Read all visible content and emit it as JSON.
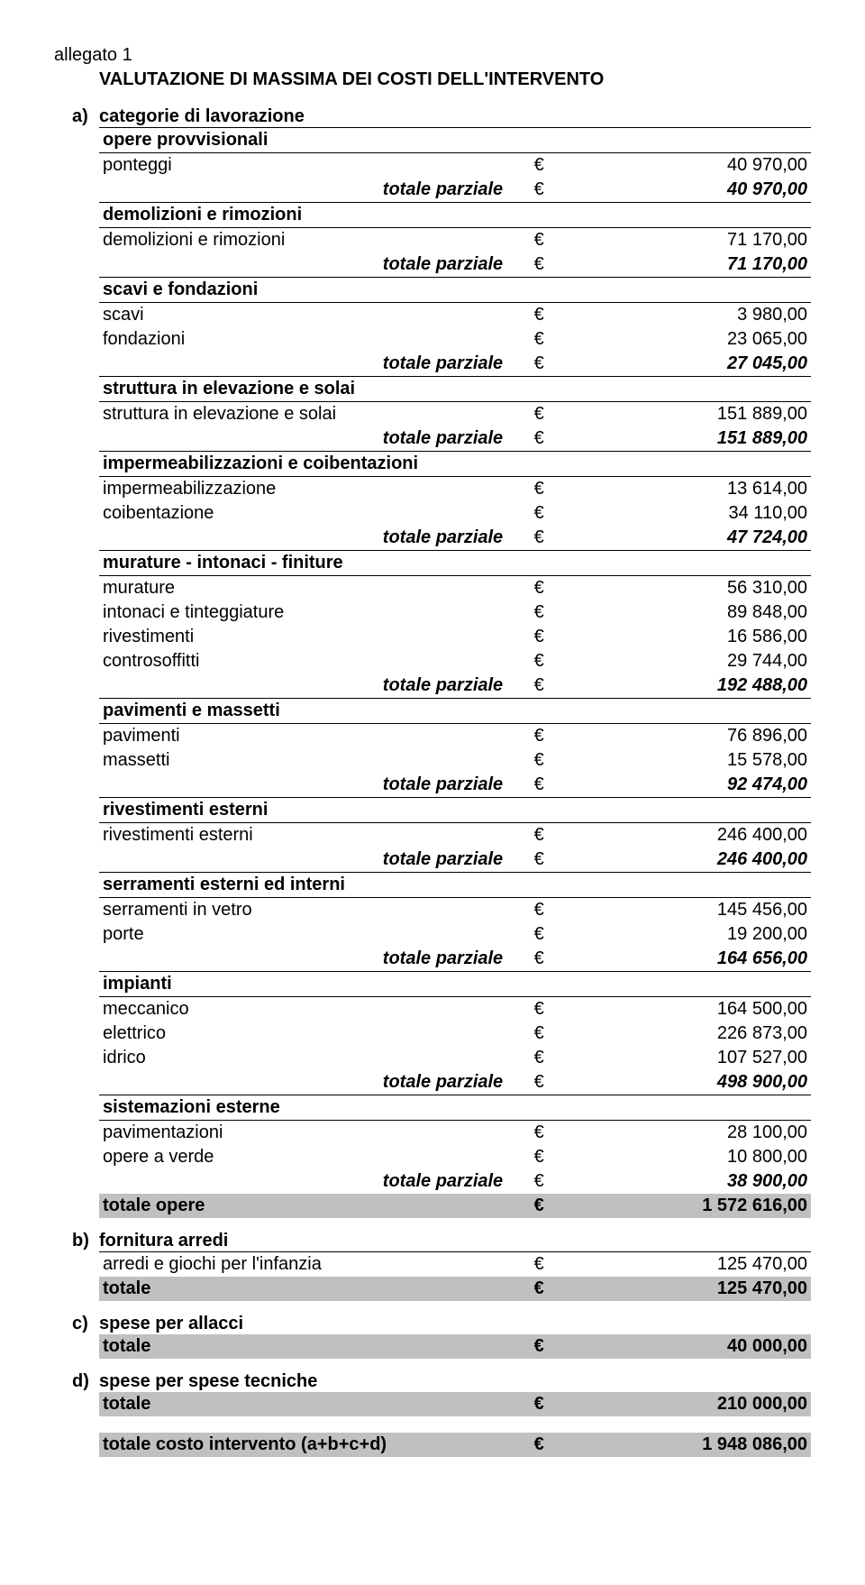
{
  "topleft": "allegato 1",
  "title": "VALUTAZIONE DI MASSIMA DEI COSTI DELL'INTERVENTO",
  "currency": "€",
  "subtotal_label": "totale parziale",
  "sections": {
    "a": {
      "letter": "a)",
      "label": "categorie di lavorazione",
      "groups": [
        {
          "name": "opere provvisionali",
          "rows": [
            {
              "label": "ponteggi",
              "value": "40 970,00"
            }
          ],
          "subtotal": "40 970,00"
        },
        {
          "name": "demolizioni e rimozioni",
          "rows": [
            {
              "label": "demolizioni e rimozioni",
              "value": "71 170,00"
            }
          ],
          "subtotal": "71 170,00"
        },
        {
          "name": "scavi e fondazioni",
          "rows": [
            {
              "label": "scavi",
              "value": "3 980,00"
            },
            {
              "label": "fondazioni",
              "value": "23 065,00"
            }
          ],
          "subtotal": "27 045,00"
        },
        {
          "name": "struttura in elevazione e solai",
          "rows": [
            {
              "label": "struttura in elevazione e solai",
              "value": "151 889,00"
            }
          ],
          "subtotal": "151 889,00"
        },
        {
          "name": "impermeabilizzazioni e coibentazioni",
          "rows": [
            {
              "label": "impermeabilizzazione",
              "value": "13 614,00"
            },
            {
              "label": "coibentazione",
              "value": "34 110,00"
            }
          ],
          "subtotal": "47 724,00"
        },
        {
          "name": "murature - intonaci - finiture",
          "rows": [
            {
              "label": "murature",
              "value": "56 310,00"
            },
            {
              "label": "intonaci e tinteggiature",
              "value": "89 848,00"
            },
            {
              "label": "rivestimenti",
              "value": "16 586,00"
            },
            {
              "label": "controsoffitti",
              "value": "29 744,00"
            }
          ],
          "subtotal": "192 488,00"
        },
        {
          "name": "pavimenti e massetti",
          "rows": [
            {
              "label": "pavimenti",
              "value": "76 896,00"
            },
            {
              "label": "massetti",
              "value": "15 578,00"
            }
          ],
          "subtotal": "92 474,00"
        },
        {
          "name": "rivestimenti esterni",
          "rows": [
            {
              "label": "rivestimenti esterni",
              "value": "246 400,00"
            }
          ],
          "subtotal": "246 400,00"
        },
        {
          "name": "serramenti esterni ed interni",
          "rows": [
            {
              "label": "serramenti in vetro",
              "value": "145 456,00"
            },
            {
              "label": "porte",
              "value": "19 200,00"
            }
          ],
          "subtotal": "164 656,00"
        },
        {
          "name": "impianti",
          "rows": [
            {
              "label": "meccanico",
              "value": "164 500,00"
            },
            {
              "label": "elettrico",
              "value": "226 873,00"
            },
            {
              "label": "idrico",
              "value": "107 527,00"
            }
          ],
          "subtotal": "498 900,00"
        },
        {
          "name": "sistemazioni esterne",
          "rows": [
            {
              "label": "pavimentazioni",
              "value": "28 100,00"
            },
            {
              "label": "opere a verde",
              "value": "10 800,00"
            }
          ],
          "subtotal": "38 900,00"
        }
      ],
      "total_label": "totale opere",
      "total_value": "1 572 616,00"
    },
    "b": {
      "letter": "b)",
      "label": "fornitura arredi",
      "rows": [
        {
          "label": "arredi e giochi per l'infanzia",
          "value": "125 470,00"
        }
      ],
      "total_label": "totale",
      "total_value": "125 470,00"
    },
    "c": {
      "letter": "c)",
      "label": "spese per allacci",
      "total_label": "totale",
      "total_value": "40 000,00"
    },
    "d": {
      "letter": "d)",
      "label": "spese per spese tecniche",
      "total_label": "totale",
      "total_value": "210 000,00"
    }
  },
  "final": {
    "label": "totale costo intervento (a+b+c+d)",
    "value": "1 948 086,00"
  }
}
